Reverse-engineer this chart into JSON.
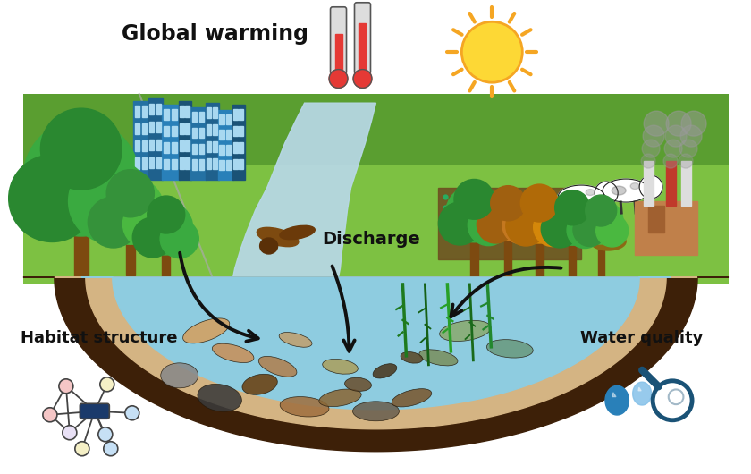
{
  "title": "Global warming",
  "label_discharge": "Discharge",
  "label_habitat": "Habitat structure",
  "label_water": "Water quality",
  "bg_color": "#ffffff",
  "river_color": "#b8d8e8",
  "grass_color_light": "#7dc142",
  "grass_color_mid": "#5a9e30",
  "grass_color_dark": "#4a8822",
  "ground_color": "#8B6914",
  "sand_color": "#d4b483",
  "dark_soil": "#3d2008",
  "water_body_color": "#8ecce0",
  "sun_color": "#f5a623",
  "sun_inner": "#fdd835",
  "thermometer_red": "#e53935",
  "thermometer_bg": "#dddddd",
  "arrow_color": "#111111",
  "node_center_color": "#1a3a6b",
  "node_color_pink": "#f5c6c6",
  "node_color_blue": "#c6e0f5",
  "node_color_yellow": "#f5f0c6",
  "node_color_lavender": "#e8e0f5",
  "drop_color_1": "#2980b9",
  "drop_color_2": "#85c1e9",
  "magnify_color": "#1a5276",
  "smoke_color": "#999999",
  "building_color": "#2471a3",
  "building_color2": "#1a5276",
  "tree_green1": "#3cb843",
  "tree_green2": "#2e9e38",
  "tree_green3": "#56c45a",
  "tree_autumn": "#d4870a",
  "tree_autumn2": "#c47820",
  "trunk_brown": "#7d4a10",
  "factory_body": "#b5651d",
  "factory_chimney": "#dddddd",
  "chimney_red": "#c0392b",
  "field_brown": "#6d4c20",
  "figsize": [
    8.4,
    5.3
  ],
  "dpi": 100
}
